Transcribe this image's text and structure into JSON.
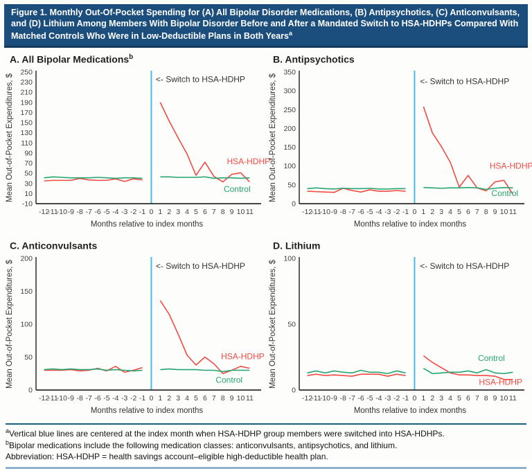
{
  "header": {
    "title": "Figure 1. Monthly Out-Of-Pocket Spending for (A) All Bipolar Disorder Medications, (B) Antipsychotics, (C) Anticonvulsants, and (D) Lithium Among Members With Bipolar Disorder Before and After a Mandated Switch to HSA-HDHPs Compared With Matched Controls Who Were in Low-Deductible Plans in Both Years",
    "title_superscript": "a"
  },
  "colors": {
    "header_bg": "#1B4E7C",
    "hsa_hdhp": "#F24A42",
    "control": "#25A56F",
    "index_line": "#45BCE8",
    "axis": "#2B2B2B",
    "divider_dark": "#1A607F",
    "divider_light": "#8FB2CE"
  },
  "footnotes": [
    {
      "sup": "a",
      "text": "Vertical blue lines are centered at the index month when HSA-HDHP group members were switched into HSA-HDHPs."
    },
    {
      "sup": "b",
      "text": "Bipolar medications include the following medication classes: anticonvulsants, antipsychotics, and lithium."
    },
    {
      "sup": "",
      "text": "Abbreviation: HSA-HDHP = health savings account–eligible high-deductible health plan."
    }
  ],
  "chart_data": [
    {
      "id": "A",
      "type": "line",
      "title": "A. All Bipolar Medications",
      "title_superscript": "b",
      "ylabel": "Mean Out-of-Pocket Expenditures, $",
      "xlabel": "Months relative to index months",
      "ylim": [
        -10,
        250
      ],
      "yticks": [
        -10,
        10,
        30,
        50,
        70,
        90,
        110,
        130,
        150,
        170,
        190,
        210,
        230,
        250
      ],
      "xticks": [
        -12,
        -11,
        -10,
        -9,
        -8,
        -7,
        -6,
        -5,
        -4,
        -3,
        -2,
        -1,
        0,
        1,
        2,
        3,
        4,
        5,
        6,
        7,
        8,
        9,
        10,
        11
      ],
      "x_pre": [
        -12,
        -11,
        -10,
        -9,
        -8,
        -7,
        -6,
        -5,
        -4,
        -3,
        -2,
        -1
      ],
      "x_post": [
        1,
        2,
        3,
        4,
        5,
        6,
        7,
        8,
        9,
        10,
        11
      ],
      "index_line_x": 0,
      "annotation": "<- Switch to HSA-HDHP",
      "annotation_pos": {
        "x": 0.5,
        "y": 230
      },
      "grid": false,
      "series": [
        {
          "name": "HSA-HDHP",
          "color_key": "hsa_hdhp",
          "pre": [
            35,
            36,
            36,
            36,
            40,
            37,
            36,
            36,
            39,
            34,
            39,
            37
          ],
          "post": [
            190,
            153,
            120,
            88,
            46,
            72,
            44,
            33,
            48,
            51,
            33
          ],
          "label_pos": {
            "x": 8.45,
            "y": 68
          }
        },
        {
          "name": "Control",
          "color_key": "control",
          "pre": [
            41,
            43,
            42,
            41,
            41,
            41,
            42,
            41,
            40,
            41,
            41,
            40
          ],
          "post": [
            43,
            43,
            42,
            42,
            42,
            43,
            40,
            41,
            41,
            40,
            41
          ],
          "label_pos": {
            "x": 8.1,
            "y": 13
          }
        }
      ]
    },
    {
      "id": "B",
      "type": "line",
      "title": "B. Antipsychotics",
      "title_superscript": "",
      "ylabel": "Mean Out-of-Pocket Expenditures, $",
      "xlabel": "Months relative to index months",
      "ylim": [
        0,
        350
      ],
      "yticks": [
        0,
        50,
        100,
        150,
        200,
        250,
        300,
        350
      ],
      "xticks": [
        -12,
        -11,
        -10,
        -9,
        -8,
        -7,
        -6,
        -5,
        -4,
        -3,
        -2,
        -1,
        0,
        1,
        2,
        3,
        4,
        5,
        6,
        7,
        8,
        9,
        10,
        11
      ],
      "x_pre": [
        -12,
        -11,
        -10,
        -9,
        -8,
        -7,
        -6,
        -5,
        -4,
        -3,
        -2,
        -1
      ],
      "x_post": [
        1,
        2,
        3,
        4,
        5,
        6,
        7,
        8,
        9,
        10,
        11
      ],
      "index_line_x": 0,
      "annotation": "<- Switch to HSA-HDHP",
      "annotation_pos": {
        "x": 0.6,
        "y": 318
      },
      "grid": false,
      "series": [
        {
          "name": "HSA-HDHP",
          "color_key": "hsa_hdhp",
          "pre": [
            33,
            32,
            31,
            30,
            41,
            35,
            31,
            37,
            33,
            33,
            35,
            33
          ],
          "post": [
            258,
            188,
            152,
            110,
            44,
            75,
            42,
            34,
            58,
            62,
            25
          ],
          "label_pos": {
            "x": 8.4,
            "y": 93
          }
        },
        {
          "name": "Control",
          "color_key": "control",
          "pre": [
            40,
            42,
            40,
            39,
            41,
            40,
            40,
            41,
            39,
            39,
            40,
            40
          ],
          "post": [
            43,
            42,
            41,
            42,
            42,
            43,
            42,
            38,
            41,
            43,
            42
          ],
          "label_pos": {
            "x": 8.6,
            "y": 20
          }
        }
      ]
    },
    {
      "id": "C",
      "type": "line",
      "title": "C. Anticonvulsants",
      "title_superscript": "",
      "ylabel": "Mean Out-of-Pocket Expenditures, $",
      "xlabel": "Months relative to index months",
      "ylim": [
        0,
        200
      ],
      "yticks": [
        0,
        50,
        100,
        150,
        200
      ],
      "xticks": [
        -12,
        -11,
        -10,
        -9,
        -8,
        -7,
        -6,
        -5,
        -4,
        -3,
        -2,
        -1,
        0,
        1,
        2,
        3,
        4,
        5,
        6,
        7,
        8,
        9,
        10,
        11
      ],
      "x_pre": [
        -12,
        -11,
        -10,
        -9,
        -8,
        -7,
        -6,
        -5,
        -4,
        -3,
        -2,
        -1
      ],
      "x_post": [
        1,
        2,
        3,
        4,
        5,
        6,
        7,
        8,
        9,
        10,
        11
      ],
      "index_line_x": 0,
      "annotation": "<- Switch to HSA-HDHP",
      "annotation_pos": {
        "x": 0.5,
        "y": 184
      },
      "grid": false,
      "series": [
        {
          "name": "HSA-HDHP",
          "color_key": "hsa_hdhp",
          "pre": [
            30,
            30,
            30,
            31,
            29,
            30,
            33,
            29,
            36,
            27,
            30,
            34
          ],
          "post": [
            136,
            115,
            85,
            53,
            38,
            50,
            40,
            25,
            30,
            36,
            33
          ],
          "label_pos": {
            "x": 7.8,
            "y": 47
          }
        },
        {
          "name": "Control",
          "color_key": "control",
          "pre": [
            31,
            32,
            31,
            32,
            31,
            31,
            32,
            30,
            31,
            30,
            29,
            30
          ],
          "post": [
            31,
            32,
            31,
            31,
            31,
            30,
            30,
            28,
            30,
            30,
            30
          ],
          "label_pos": {
            "x": 7.2,
            "y": 11
          }
        }
      ]
    },
    {
      "id": "D",
      "type": "line",
      "title": "D. Lithium",
      "title_superscript": "",
      "ylabel": "Mean Out-of-Pocket Expenditures, $",
      "xlabel": "Months relative to index months",
      "ylim": [
        0,
        100
      ],
      "yticks": [
        0,
        50,
        100
      ],
      "xticks": [
        -12,
        -11,
        -10,
        -9,
        -8,
        -7,
        -6,
        -5,
        -4,
        -3,
        -2,
        -1,
        0,
        1,
        2,
        3,
        4,
        5,
        6,
        7,
        8,
        9,
        10,
        11
      ],
      "x_pre": [
        -12,
        -11,
        -10,
        -9,
        -8,
        -7,
        -6,
        -5,
        -4,
        -3,
        -2,
        -1
      ],
      "x_post": [
        1,
        2,
        3,
        4,
        5,
        6,
        7,
        8,
        9,
        10,
        11
      ],
      "index_line_x": 0,
      "annotation": "<- Switch to HSA-HDHP",
      "annotation_pos": {
        "x": 0.6,
        "y": 92
      },
      "grid": false,
      "series": [
        {
          "name": "HSA-HDHP",
          "color_key": "hsa_hdhp",
          "pre": [
            11,
            12,
            11,
            11.5,
            11,
            10.5,
            12,
            12,
            12,
            10.5,
            12,
            11
          ],
          "post": [
            26,
            21,
            17,
            13,
            11.5,
            11.5,
            11,
            11,
            10.5,
            8,
            8
          ],
          "label_pos": {
            "x": 7.2,
            "y": 4
          }
        },
        {
          "name": "Control",
          "color_key": "control",
          "pre": [
            13,
            14.5,
            13,
            14.5,
            13.5,
            13,
            15,
            13.5,
            13.5,
            12.5,
            14.5,
            13
          ],
          "post": [
            16.5,
            12.5,
            13,
            13.5,
            13.5,
            14.5,
            13,
            15.5,
            13,
            12.5,
            13.5
          ],
          "label_pos": {
            "x": 7.1,
            "y": 22
          }
        }
      ]
    }
  ]
}
